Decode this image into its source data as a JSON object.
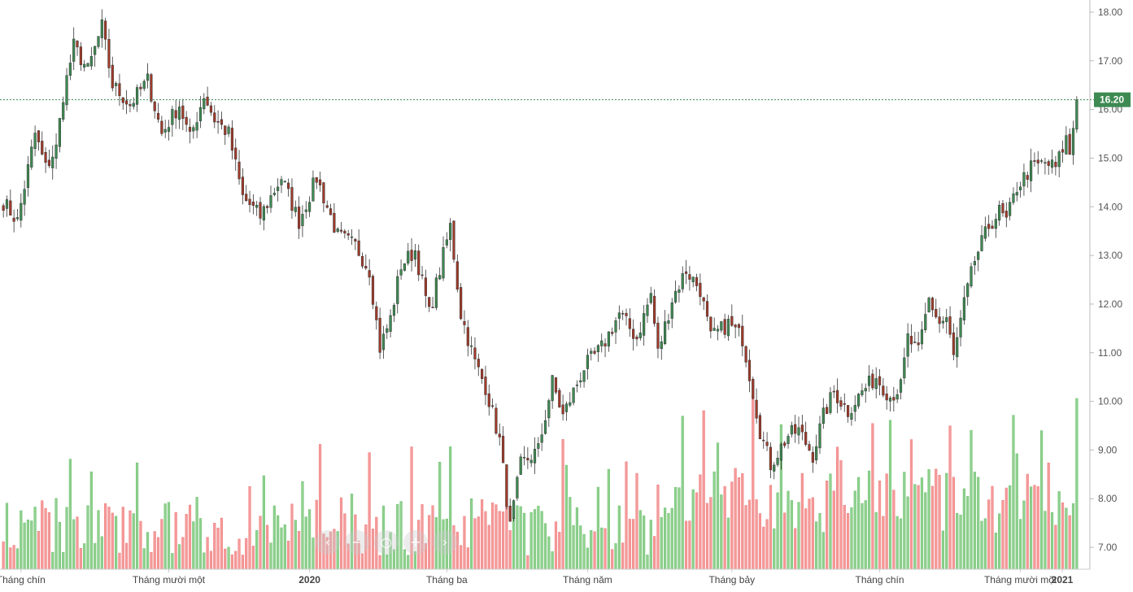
{
  "chart_data": {
    "type": "candlestick",
    "title": "",
    "y_axis": {
      "range": [
        6.55,
        18.25
      ],
      "ticks": [
        "7.00",
        "8.00",
        "9.00",
        "10.00",
        "11.00",
        "12.00",
        "13.00",
        "14.00",
        "15.00",
        "16.00",
        "17.00",
        "18.00"
      ],
      "position": "right"
    },
    "x_axis": {
      "labels": [
        {
          "text": "Tháng chín",
          "index": 5
        },
        {
          "text": "Tháng mười một",
          "index": 47
        },
        {
          "text": "2020",
          "index": 87,
          "bold": true
        },
        {
          "text": "Tháng ba",
          "index": 126
        },
        {
          "text": "Tháng năm",
          "index": 166
        },
        {
          "text": "Tháng bảy",
          "index": 207
        },
        {
          "text": "Tháng chín",
          "index": 249
        },
        {
          "text": "Tháng mười một",
          "index": 289
        },
        {
          "text": "2021",
          "index": 330,
          "bold": true
        }
      ]
    },
    "last_price": {
      "value": 16.2,
      "label": "16.20"
    },
    "grid": false,
    "colors": {
      "up": "#3d8a52",
      "down": "#a13a2a",
      "vol_up": "#8fd18f",
      "vol_down": "#f59a9a",
      "last_price": "#3d8a52"
    },
    "keypoints": [
      [
        0,
        14.1
      ],
      [
        4,
        13.7
      ],
      [
        9,
        15.5
      ],
      [
        12,
        14.8
      ],
      [
        15,
        15.2
      ],
      [
        17,
        16.3
      ],
      [
        20,
        17.3
      ],
      [
        24,
        16.8
      ],
      [
        28,
        17.7
      ],
      [
        31,
        16.5
      ],
      [
        36,
        16.1
      ],
      [
        41,
        16.6
      ],
      [
        45,
        15.5
      ],
      [
        50,
        16.1
      ],
      [
        53,
        15.4
      ],
      [
        57,
        16.3
      ],
      [
        60,
        15.8
      ],
      [
        64,
        15.5
      ],
      [
        68,
        14.2
      ],
      [
        73,
        13.8
      ],
      [
        79,
        14.6
      ],
      [
        84,
        13.7
      ],
      [
        89,
        14.6
      ],
      [
        95,
        13.4
      ],
      [
        100,
        13.2
      ],
      [
        104,
        12.7
      ],
      [
        107,
        11.1
      ],
      [
        110,
        11.7
      ],
      [
        113,
        12.8
      ],
      [
        117,
        13.1
      ],
      [
        121,
        11.8
      ],
      [
        124,
        12.7
      ],
      [
        127,
        13.6
      ],
      [
        130,
        11.8
      ],
      [
        134,
        10.8
      ],
      [
        137,
        10.3
      ],
      [
        141,
        9.2
      ],
      [
        144,
        7.4
      ],
      [
        147,
        8.7
      ],
      [
        152,
        9.0
      ],
      [
        156,
        10.4
      ],
      [
        159,
        9.7
      ],
      [
        165,
        10.7
      ],
      [
        170,
        11.1
      ],
      [
        175,
        11.8
      ],
      [
        180,
        11.3
      ],
      [
        184,
        12.2
      ],
      [
        186,
        11.0
      ],
      [
        190,
        12.1
      ],
      [
        194,
        12.7
      ],
      [
        198,
        12.3
      ],
      [
        201,
        11.3
      ],
      [
        206,
        11.6
      ],
      [
        210,
        11.3
      ],
      [
        213,
        10.2
      ],
      [
        215,
        9.4
      ],
      [
        218,
        8.7
      ],
      [
        223,
        9.3
      ],
      [
        226,
        9.4
      ],
      [
        230,
        8.9
      ],
      [
        233,
        9.7
      ],
      [
        236,
        10.2
      ],
      [
        240,
        9.8
      ],
      [
        244,
        10.2
      ],
      [
        248,
        10.5
      ],
      [
        252,
        10.1
      ],
      [
        255,
        10.3
      ],
      [
        257,
        11.3
      ],
      [
        260,
        11.0
      ],
      [
        263,
        12.1
      ],
      [
        266,
        11.6
      ],
      [
        268,
        11.7
      ],
      [
        270,
        10.9
      ],
      [
        273,
        12.0
      ],
      [
        276,
        12.9
      ],
      [
        280,
        13.6
      ],
      [
        283,
        13.9
      ],
      [
        285,
        13.7
      ],
      [
        288,
        14.4
      ],
      [
        292,
        14.8
      ],
      [
        296,
        14.9
      ],
      [
        299,
        14.8
      ],
      [
        302,
        15.4
      ],
      [
        303,
        15.1
      ],
      [
        305,
        16.2
      ]
    ],
    "volume_range": [
      0,
      1.0
    ]
  }
}
